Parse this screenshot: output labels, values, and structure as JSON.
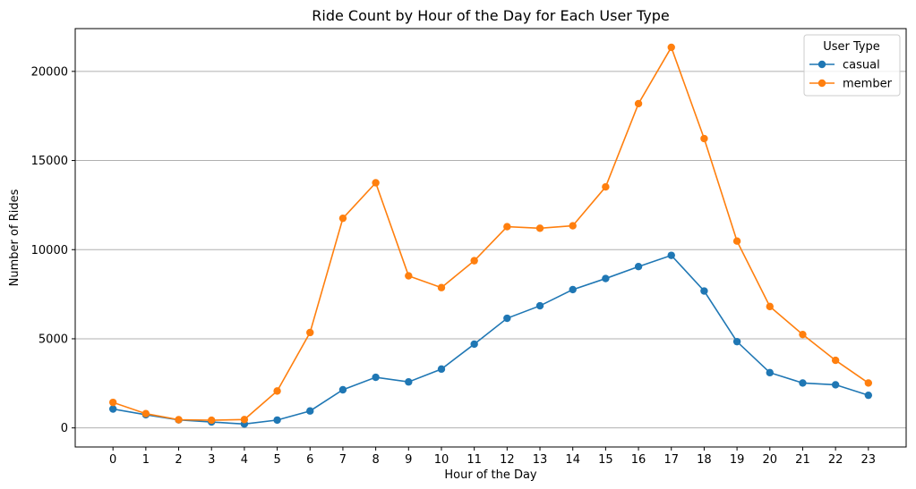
{
  "chart_data": {
    "type": "line",
    "title": "Ride Count by Hour of the Day for Each User Type",
    "xlabel": "Hour of the Day",
    "ylabel": "Number of Rides",
    "x": [
      0,
      1,
      2,
      3,
      4,
      5,
      6,
      7,
      8,
      9,
      10,
      11,
      12,
      13,
      14,
      15,
      16,
      17,
      18,
      19,
      20,
      21,
      22,
      23
    ],
    "xlim": [
      -1.15,
      24.15
    ],
    "ylim": [
      -1070,
      22400
    ],
    "yticks": [
      0,
      5000,
      10000,
      15000,
      20000
    ],
    "grid": "y-axis",
    "legend": {
      "title": "User Type",
      "placement": "top-right"
    },
    "series": [
      {
        "name": "casual",
        "color": "#1f77b4",
        "values": [
          1060,
          740,
          450,
          330,
          220,
          440,
          950,
          2140,
          2840,
          2580,
          3300,
          4700,
          6150,
          6850,
          7760,
          8380,
          9050,
          9680,
          7680,
          4840,
          3100,
          2520,
          2420,
          1830
        ]
      },
      {
        "name": "member",
        "color": "#ff7f0e",
        "values": [
          1430,
          800,
          460,
          430,
          470,
          2070,
          5350,
          11760,
          13750,
          8530,
          7870,
          9380,
          11290,
          11200,
          11340,
          13520,
          18190,
          21350,
          16230,
          10480,
          6810,
          5240,
          3790,
          2520
        ]
      }
    ]
  }
}
